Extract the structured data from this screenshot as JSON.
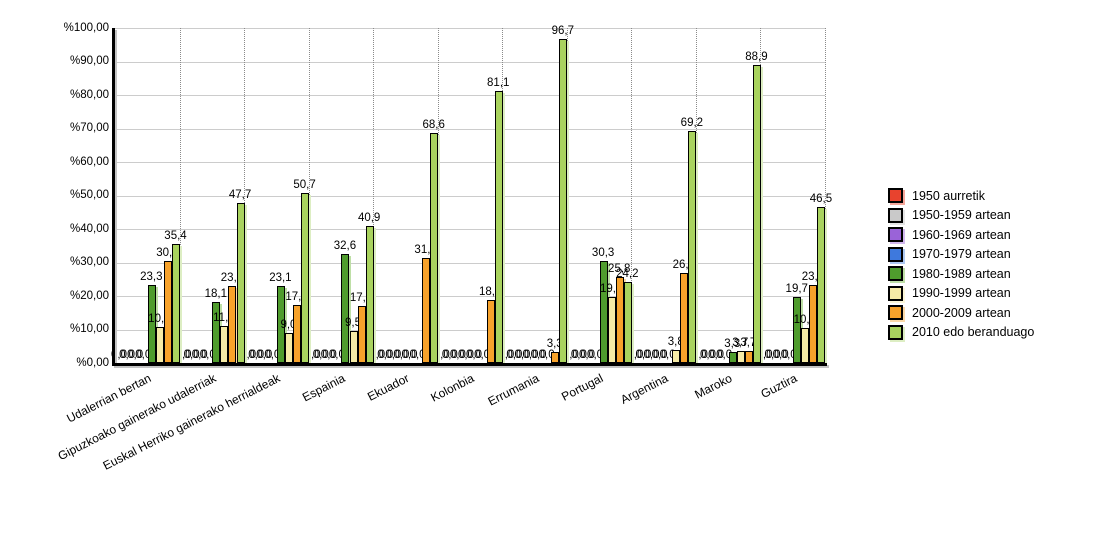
{
  "chart_data": {
    "type": "bar",
    "title": "",
    "xlabel": "",
    "ylabel": "",
    "categories": [
      "Udalerrian bertan",
      "Gipuzkoako gainerako udalerriak",
      "Euskal Herriko gainerako herrialdeak",
      "Espainia",
      "Ekuador",
      "Kolonbia",
      "Errumania",
      "Portugal",
      "Argentina",
      "Maroko",
      "Guztira"
    ],
    "series": [
      {
        "name": "1950 aurretik",
        "color": "#e8432e",
        "shadow": "#f6a69a",
        "values": [
          0,
          0,
          0,
          0,
          0,
          0,
          0,
          0,
          0,
          0,
          0
        ]
      },
      {
        "name": "1950-1959 artean",
        "color": "#c9c9c9",
        "shadow": "#e4e4e4",
        "values": [
          0,
          0,
          0,
          0,
          0,
          0,
          0,
          0,
          0,
          0,
          0
        ]
      },
      {
        "name": "1960-1969 artean",
        "color": "#9a63d8",
        "shadow": "#d2b8ef",
        "values": [
          0,
          0,
          0,
          0,
          0,
          0,
          0,
          0,
          0,
          0,
          0
        ]
      },
      {
        "name": "1970-1979 artean",
        "color": "#3e79dd",
        "shadow": "#adc8f2",
        "values": [
          0,
          0,
          0,
          0,
          0,
          0,
          0,
          0,
          0,
          0,
          0
        ]
      },
      {
        "name": "1980-1989 artean",
        "color": "#4f9c2d",
        "shadow": "#bedfa6",
        "values": [
          23.3,
          18.1,
          23.1,
          32.6,
          0,
          0,
          0,
          30.3,
          0,
          3.3,
          19.7
        ]
      },
      {
        "name": "1990-1999 artean",
        "color": "#f6eba6",
        "shadow": "#fbf6d8",
        "values": [
          10.8,
          11.1,
          9.0,
          9.5,
          0,
          0,
          0,
          19.7,
          3.8,
          3.7,
          10.4
        ]
      },
      {
        "name": "2000-2009 artean",
        "color": "#f7a22b",
        "shadow": "#fbd9a8",
        "values": [
          30.5,
          23.1,
          17.2,
          17.0,
          31.4,
          18.9,
          3.3,
          25.8,
          26.9,
          3.7,
          23.4
        ]
      },
      {
        "name": "2010 edo beranduago",
        "color": "#a9d35e",
        "shadow": "#ddeec3",
        "values": [
          35.4,
          47.7,
          50.7,
          40.9,
          68.6,
          81.1,
          96.7,
          24.2,
          69.2,
          88.9,
          46.5
        ]
      }
    ],
    "y_axis": {
      "min": 0,
      "max": 100,
      "step": 10,
      "tick_labels": [
        "%0,00",
        "%10,00",
        "%20,00",
        "%30,00",
        "%40,00",
        "%50,00",
        "%60,00",
        "%70,00",
        "%80,00",
        "%90,00",
        "%100,00"
      ]
    },
    "value_label_decimal_separator": ",",
    "legend_position": "right",
    "grid": true
  }
}
